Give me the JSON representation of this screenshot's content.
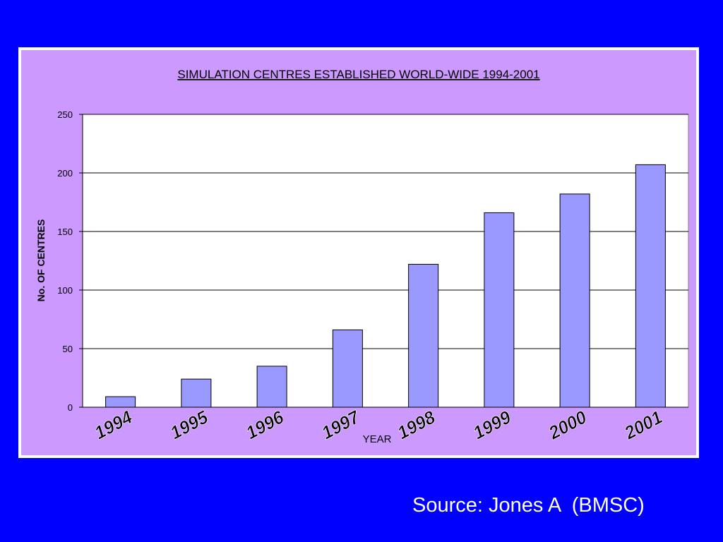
{
  "chart_data": {
    "type": "bar",
    "title": "SIMULATION CENTRES ESTABLISHED WORLD-WIDE 1994-2001",
    "xlabel": "YEAR",
    "ylabel": "No. OF CENTRES",
    "categories": [
      "1994",
      "1995",
      "1996",
      "1997",
      "1998",
      "1999",
      "2000",
      "2001"
    ],
    "values": [
      9,
      24,
      35,
      66,
      122,
      166,
      182,
      207
    ],
    "ylim": [
      0,
      250
    ],
    "yticks": [
      "0",
      "50",
      "100",
      "150",
      "200",
      "250"
    ],
    "grid": true,
    "legend": "none",
    "colors": {
      "bar": "#9999ff",
      "plot_background": "#ffffff",
      "chart_background": "#cc99ff",
      "slide_background": "#0000ff"
    }
  },
  "footer": {
    "source": "Source: Jones A  (BMSC)"
  }
}
